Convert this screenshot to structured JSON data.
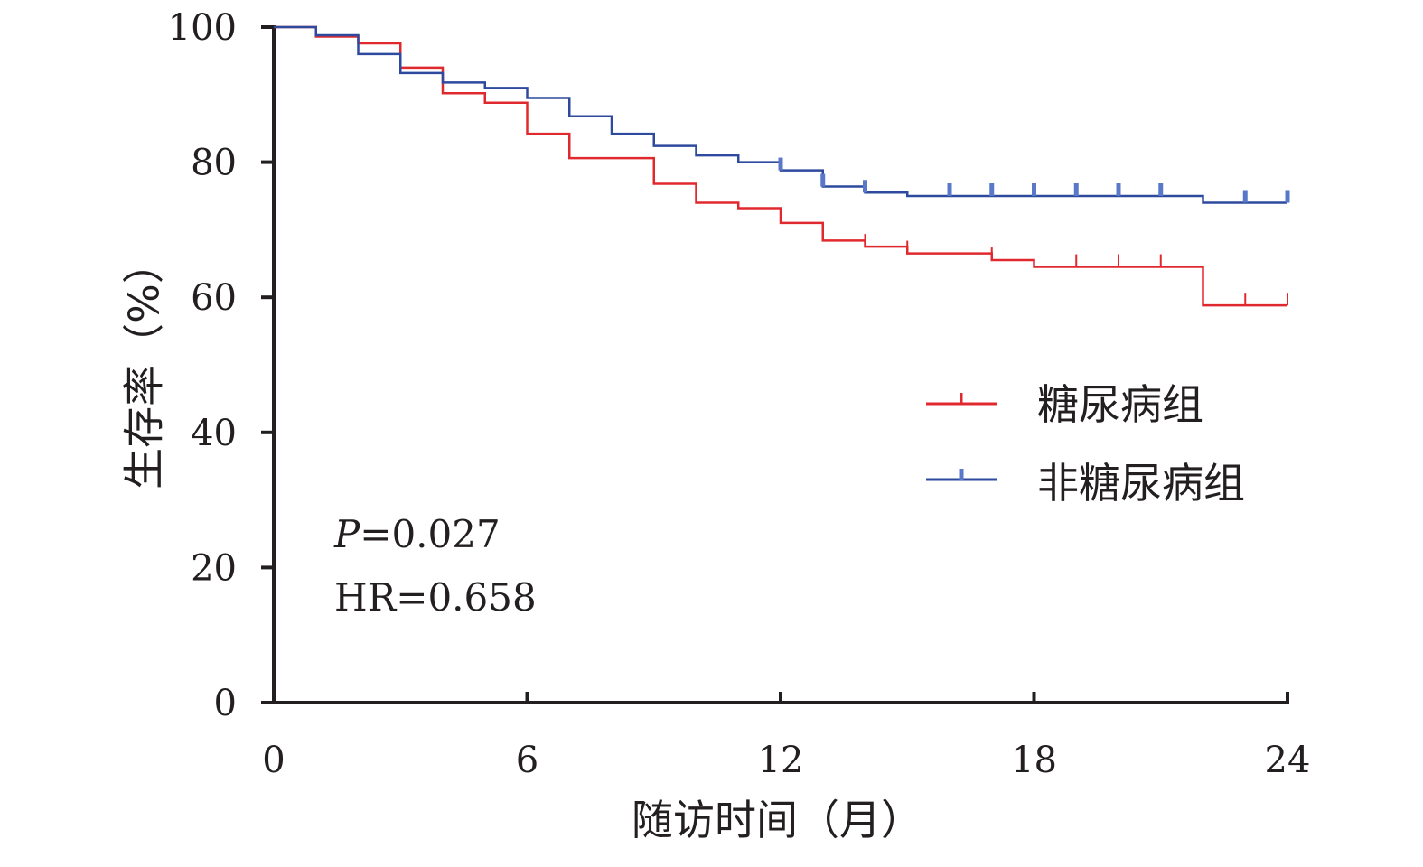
{
  "chart_data": {
    "type": "line",
    "subtype": "kaplan-meier-step",
    "title": "",
    "xlabel": "随访时间（月）",
    "ylabel": "生存率（%）",
    "xlim": [
      0,
      24
    ],
    "ylim": [
      0,
      100
    ],
    "x_ticks": [
      "0",
      "6",
      "12",
      "18",
      "24"
    ],
    "y_ticks": [
      "0",
      "20",
      "40",
      "60",
      "80",
      "100"
    ],
    "grid": false,
    "legend_position": "right-middle",
    "annotations": {
      "p_label": "P",
      "p_value": "=0.027",
      "hr_text": "HR=0.658"
    },
    "series": [
      {
        "name": "糖尿病组",
        "color": "#e0292e",
        "steps": [
          [
            0,
            100
          ],
          [
            1,
            98.6
          ],
          [
            2,
            97.6
          ],
          [
            3,
            94.0
          ],
          [
            4,
            90.2
          ],
          [
            5,
            88.8
          ],
          [
            6,
            84.2
          ],
          [
            7,
            80.6
          ],
          [
            9,
            76.8
          ],
          [
            10,
            74.0
          ],
          [
            11,
            73.2
          ],
          [
            12,
            71.0
          ],
          [
            13,
            68.4
          ],
          [
            14,
            67.5
          ],
          [
            15,
            66.5
          ],
          [
            17,
            65.5
          ],
          [
            18,
            64.5
          ],
          [
            22,
            58.8
          ],
          [
            24,
            58.8
          ]
        ],
        "censored": [
          14,
          15,
          17,
          19,
          20,
          21,
          23,
          24
        ]
      },
      {
        "name": "非糖尿病组",
        "color": "#2e4a9e",
        "steps": [
          [
            0,
            100
          ],
          [
            1,
            98.8
          ],
          [
            2,
            96.0
          ],
          [
            3,
            93.2
          ],
          [
            4,
            91.8
          ],
          [
            5,
            91.0
          ],
          [
            6,
            89.5
          ],
          [
            7,
            86.8
          ],
          [
            8,
            84.2
          ],
          [
            9,
            82.4
          ],
          [
            10,
            81.0
          ],
          [
            11,
            80.0
          ],
          [
            12,
            78.8
          ],
          [
            13,
            76.4
          ],
          [
            14,
            75.5
          ],
          [
            15,
            75.0
          ],
          [
            22,
            74.0
          ],
          [
            24,
            74.0
          ]
        ],
        "censored": [
          12,
          13,
          14,
          16,
          17,
          18,
          19,
          20,
          21,
          23,
          24
        ]
      }
    ]
  }
}
